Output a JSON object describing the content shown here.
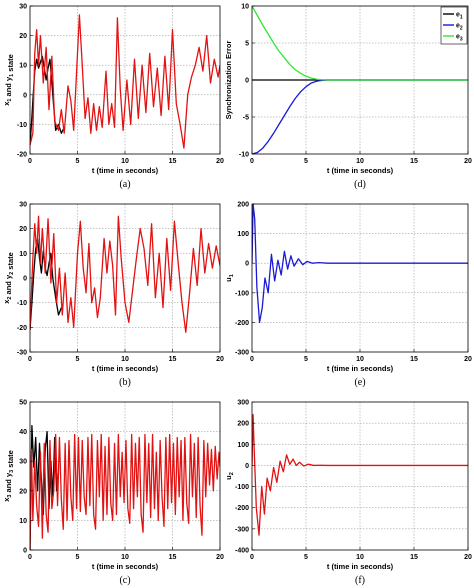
{
  "colors": {
    "black": "#000000",
    "red": "#e31212",
    "blue": "#1a1ad6",
    "green": "#33e633",
    "grid": "#8c8c8c"
  },
  "chart_data": [
    {
      "id": "a",
      "type": "line",
      "caption": "(a)",
      "xlabel": "t (time in seconds)",
      "ylabel": "x_1 and y_1 state",
      "ylabel_main": [
        "x",
        " and y",
        " state"
      ],
      "ylabel_subs": [
        "1",
        "1"
      ],
      "xlim": [
        0,
        20
      ],
      "ylim": [
        -20,
        30
      ],
      "xticks": [
        0,
        5,
        10,
        15,
        20
      ],
      "yticks": [
        -20,
        -10,
        0,
        10,
        20,
        30
      ],
      "grid": true,
      "series": [
        {
          "color": "black",
          "x": [
            0,
            0.15,
            0.3,
            0.5,
            0.7,
            0.9,
            1.1,
            1.3,
            1.5,
            1.7,
            1.9,
            2.1,
            2.3,
            2.5,
            2.7,
            3.0,
            3.3,
            3.6
          ],
          "y": [
            -17,
            -10,
            -2,
            8,
            12,
            9,
            11,
            13,
            9,
            5,
            9,
            12,
            4,
            -4,
            -12,
            -10,
            -13,
            -11
          ]
        },
        {
          "color": "red",
          "x": [
            0,
            0.3,
            0.5,
            0.7,
            0.9,
            1.1,
            1.4,
            1.7,
            2.0,
            2.3,
            2.6,
            3.0,
            3.3,
            3.6,
            4.0,
            4.3,
            4.6,
            5.0,
            5.2,
            5.5,
            5.8,
            6.1,
            6.4,
            6.7,
            7.0,
            7.3,
            7.6,
            8.0,
            8.3,
            8.6,
            8.9,
            9.2,
            9.5,
            9.8,
            10.2,
            10.6,
            11.0,
            11.4,
            11.8,
            12.2,
            12.6,
            13.0,
            13.4,
            13.8,
            14.2,
            14.6,
            15.0,
            15.4,
            15.8,
            16.2,
            16.6,
            17.0,
            17.4,
            17.8,
            18.2,
            18.6,
            19.0,
            19.4,
            19.8,
            20.0
          ],
          "y": [
            -17,
            -13,
            14,
            22,
            10,
            20,
            4,
            16,
            -5,
            13,
            -9,
            -12,
            -5,
            -13,
            3,
            -2,
            -12,
            14,
            27,
            10,
            -8,
            -1,
            -13,
            -3,
            -12,
            -4,
            -11,
            8,
            -10,
            -3,
            -11,
            26,
            2,
            -12,
            5,
            -10,
            12,
            -8,
            10,
            -6,
            14,
            -4,
            9,
            -7,
            13,
            -5,
            22,
            -3,
            -10,
            -18,
            0,
            6,
            10,
            16,
            8,
            20,
            4,
            12,
            6,
            10
          ]
        }
      ]
    },
    {
      "id": "d",
      "type": "line",
      "caption": "(d)",
      "xlabel": "t (time in seconds)",
      "ylabel": "Synchronization Error",
      "xlim": [
        0,
        20
      ],
      "ylim": [
        -10,
        10
      ],
      "xticks": [
        0,
        5,
        10,
        15,
        20
      ],
      "yticks": [
        -10,
        -5,
        0,
        5,
        10
      ],
      "grid": true,
      "legend": [
        {
          "label": "e_1",
          "main": "e",
          "sub": "1",
          "color": "black"
        },
        {
          "label": "e_2",
          "main": "e",
          "sub": "2",
          "color": "blue"
        },
        {
          "label": "e_3",
          "main": "e",
          "sub": "3",
          "color": "green"
        }
      ],
      "legend_position": "top-right",
      "series": [
        {
          "name": "e_1",
          "color": "black",
          "x": [
            0,
            20
          ],
          "y": [
            0,
            0
          ]
        },
        {
          "name": "e_2",
          "color": "blue",
          "x": [
            0,
            0.5,
            1,
            1.5,
            2,
            2.5,
            3,
            3.5,
            4,
            4.5,
            5,
            5.5,
            6,
            6.5,
            7,
            8,
            20
          ],
          "y": [
            -10,
            -9.8,
            -9.2,
            -8.3,
            -7.2,
            -6.0,
            -4.8,
            -3.6,
            -2.5,
            -1.6,
            -0.9,
            -0.4,
            -0.15,
            -0.05,
            0,
            0,
            0
          ]
        },
        {
          "name": "e_3",
          "color": "green",
          "x": [
            0,
            0.5,
            1,
            1.5,
            2,
            2.5,
            3,
            3.5,
            4,
            4.5,
            5,
            5.5,
            6,
            6.5,
            7,
            8,
            20
          ],
          "y": [
            10,
            8.7,
            7.4,
            6.2,
            5.0,
            3.9,
            3.0,
            2.1,
            1.4,
            0.9,
            0.5,
            0.25,
            0.1,
            0.03,
            0,
            0,
            0
          ]
        }
      ]
    },
    {
      "id": "b",
      "type": "line",
      "caption": "(b)",
      "xlabel": "t (time in seconds)",
      "ylabel": "x_2 and y_2 state",
      "ylabel_main": [
        "x",
        " and y",
        " state"
      ],
      "ylabel_subs": [
        "2",
        "2"
      ],
      "xlim": [
        0,
        20
      ],
      "ylim": [
        -30,
        30
      ],
      "xticks": [
        0,
        5,
        10,
        15,
        20
      ],
      "yticks": [
        -30,
        -20,
        -10,
        0,
        10,
        20,
        30
      ],
      "grid": true,
      "series": [
        {
          "color": "black",
          "x": [
            0,
            0.2,
            0.4,
            0.6,
            0.8,
            1.0,
            1.2,
            1.4,
            1.6,
            1.8,
            2.0,
            2.2,
            2.4,
            2.7,
            3.0,
            3.3
          ],
          "y": [
            -21,
            -10,
            2,
            12,
            16,
            8,
            2,
            11,
            4,
            1,
            6,
            10,
            0,
            -8,
            -15,
            -12
          ]
        },
        {
          "color": "red",
          "x": [
            0,
            0.3,
            0.5,
            0.7,
            0.9,
            1.1,
            1.3,
            1.6,
            1.9,
            2.2,
            2.5,
            2.8,
            3.1,
            3.4,
            3.7,
            4.0,
            4.3,
            4.6,
            5.0,
            5.3,
            5.6,
            5.9,
            6.2,
            6.5,
            6.8,
            7.1,
            7.4,
            7.8,
            8.1,
            8.4,
            8.7,
            9.0,
            9.3,
            9.6,
            10.0,
            10.4,
            10.8,
            11.2,
            11.6,
            12.0,
            12.4,
            12.8,
            13.2,
            13.6,
            14.0,
            14.4,
            14.8,
            15.2,
            15.6,
            16.0,
            16.4,
            16.8,
            17.2,
            17.6,
            18.0,
            18.4,
            18.8,
            19.2,
            19.6,
            20.0
          ],
          "y": [
            -21,
            8,
            22,
            10,
            25,
            6,
            20,
            2,
            24,
            -2,
            18,
            -10,
            4,
            -15,
            2,
            -18,
            -8,
            -20,
            10,
            23,
            4,
            -6,
            14,
            -10,
            -4,
            -16,
            -8,
            16,
            2,
            15,
            5,
            -15,
            25,
            8,
            -10,
            -18,
            -5,
            8,
            20,
            12,
            -3,
            22,
            -8,
            10,
            -12,
            16,
            -5,
            23,
            6,
            -10,
            -22,
            -6,
            12,
            -3,
            20,
            2,
            14,
            4,
            13,
            5
          ]
        }
      ]
    },
    {
      "id": "e",
      "type": "line",
      "caption": "(e)",
      "xlabel": "t (time in seconds)",
      "ylabel": "u_1",
      "ylabel_main": [
        "u"
      ],
      "ylabel_subs": [
        "1"
      ],
      "xlim": [
        0,
        20
      ],
      "ylim": [
        -300,
        200
      ],
      "xticks": [
        0,
        5,
        10,
        15,
        20
      ],
      "yticks": [
        -300,
        -200,
        -100,
        0,
        100,
        200
      ],
      "grid": true,
      "series": [
        {
          "color": "blue",
          "x": [
            0,
            0.1,
            0.25,
            0.45,
            0.7,
            0.95,
            1.2,
            1.5,
            1.8,
            2.1,
            2.4,
            2.7,
            3.0,
            3.3,
            3.6,
            3.9,
            4.3,
            4.7,
            5.1,
            5.6,
            6.2,
            7,
            20
          ],
          "y": [
            0,
            200,
            150,
            -80,
            -200,
            -150,
            -50,
            -100,
            30,
            -60,
            10,
            -40,
            40,
            -20,
            25,
            -10,
            15,
            -5,
            6,
            0,
            2,
            0,
            0
          ]
        }
      ]
    },
    {
      "id": "c",
      "type": "line",
      "caption": "(c)",
      "xlabel": "t (time in seconds)",
      "ylabel": "x_3 and y_3 state",
      "ylabel_main": [
        "x",
        " and y",
        " state"
      ],
      "ylabel_subs": [
        "3",
        "3"
      ],
      "xlim": [
        0,
        20
      ],
      "ylim": [
        0,
        50
      ],
      "xticks": [
        0,
        5,
        10,
        15,
        20
      ],
      "yticks": [
        0,
        10,
        20,
        30,
        40,
        50
      ],
      "grid": true,
      "series": [
        {
          "color": "black",
          "x": [
            0,
            0.2,
            0.4,
            0.6,
            0.8,
            1.0,
            1.2,
            1.4,
            1.6,
            1.8,
            2.0,
            2.2,
            2.4,
            2.6,
            2.8,
            3.0
          ],
          "y": [
            0,
            42,
            28,
            38,
            20,
            36,
            24,
            12,
            34,
            40,
            14,
            30,
            18,
            38,
            20,
            26
          ]
        },
        {
          "color": "red",
          "x": [
            0,
            0.15,
            0.3,
            0.5,
            0.7,
            0.9,
            1.1,
            1.3,
            1.5,
            1.7,
            1.9,
            2.1,
            2.3,
            2.5,
            2.7,
            2.9,
            3.1,
            3.3,
            3.5,
            3.7,
            3.9,
            4.1,
            4.3,
            4.5,
            4.7,
            4.9,
            5.1,
            5.3,
            5.5,
            5.7,
            5.9,
            6.1,
            6.3,
            6.5,
            6.7,
            6.9,
            7.1,
            7.3,
            7.5,
            7.7,
            7.9,
            8.1,
            8.3,
            8.5,
            8.7,
            8.9,
            9.1,
            9.3,
            9.5,
            9.7,
            9.9,
            10.1,
            10.3,
            10.5,
            10.7,
            10.9,
            11.1,
            11.3,
            11.5,
            11.7,
            11.9,
            12.1,
            12.3,
            12.5,
            12.7,
            12.9,
            13.1,
            13.3,
            13.5,
            13.7,
            13.9,
            14.1,
            14.3,
            14.5,
            14.7,
            14.9,
            15.1,
            15.3,
            15.5,
            15.7,
            15.9,
            16.1,
            16.3,
            16.5,
            16.7,
            16.9,
            17.1,
            17.3,
            17.5,
            17.7,
            17.9,
            18.1,
            18.3,
            18.5,
            18.7,
            18.9,
            19.1,
            19.3,
            19.5,
            19.7,
            19.9,
            20.0
          ],
          "y": [
            0,
            34,
            10,
            30,
            15,
            8,
            33,
            4,
            36,
            12,
            6,
            37,
            14,
            20,
            39,
            15,
            38,
            17,
            7,
            36,
            10,
            37,
            18,
            10,
            39,
            14,
            38,
            13,
            37,
            18,
            12,
            38,
            15,
            39,
            12,
            7,
            37,
            18,
            39,
            10,
            35,
            12,
            38,
            16,
            10,
            36,
            12,
            39,
            18,
            33,
            16,
            37,
            14,
            9,
            39,
            14,
            36,
            18,
            38,
            12,
            6,
            39,
            16,
            36,
            11,
            39,
            14,
            33,
            10,
            37,
            18,
            8,
            38,
            14,
            39,
            16,
            36,
            12,
            38,
            18,
            37,
            10,
            38,
            16,
            9,
            39,
            18,
            36,
            11,
            38,
            15,
            5,
            37,
            18,
            36,
            22,
            34,
            20,
            35,
            24,
            33,
            28
          ]
        }
      ]
    },
    {
      "id": "f",
      "type": "line",
      "caption": "(f)",
      "xlabel": "t (time in seconds)",
      "ylabel": "u_2",
      "ylabel_main": [
        "u"
      ],
      "ylabel_subs": [
        "2"
      ],
      "xlim": [
        0,
        20
      ],
      "ylim": [
        -400,
        300
      ],
      "xticks": [
        0,
        5,
        10,
        15,
        20
      ],
      "yticks": [
        -400,
        -300,
        -200,
        -100,
        0,
        100,
        200,
        300
      ],
      "grid": true,
      "series": [
        {
          "color": "red",
          "x": [
            0,
            0.1,
            0.2,
            0.4,
            0.65,
            0.9,
            1.15,
            1.4,
            1.7,
            2.0,
            2.3,
            2.6,
            2.9,
            3.2,
            3.5,
            3.8,
            4.1,
            4.4,
            4.8,
            5.2,
            5.7,
            6.3,
            7,
            20
          ],
          "y": [
            0,
            240,
            80,
            -200,
            -330,
            -100,
            -230,
            -60,
            -120,
            -10,
            -80,
            20,
            -30,
            50,
            5,
            30,
            0,
            15,
            -3,
            6,
            0,
            1,
            0,
            0
          ]
        }
      ]
    }
  ]
}
